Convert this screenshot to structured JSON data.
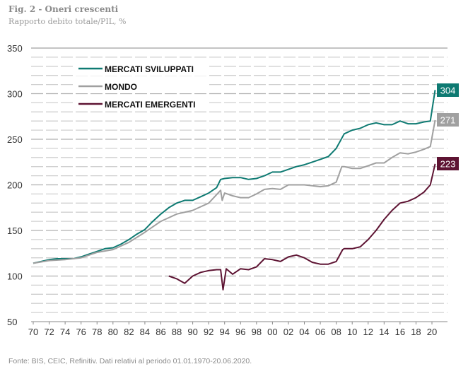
{
  "chart_data": {
    "type": "line",
    "title": "Fig. 2 - Oneri crescenti",
    "subtitle": "Rapporto debito totale/PIL, %",
    "source": "Fonte: BIS, CEIC, Refinitiv. Dati relativi al periodo 01.01.1970-20.06.2020.",
    "xlabel": "",
    "ylabel": "",
    "ylim": [
      50,
      350
    ],
    "xlim": [
      1970,
      2021.5
    ],
    "yticks": [
      50,
      100,
      150,
      200,
      250,
      300,
      350
    ],
    "xticks": [
      1970,
      1972,
      1974,
      1976,
      1978,
      1980,
      1982,
      1984,
      1986,
      1988,
      1990,
      1992,
      1994,
      1996,
      1998,
      2000,
      2002,
      2004,
      2006,
      2008,
      2010,
      2012,
      2014,
      2016,
      2018,
      2020
    ],
    "xtick_labels": [
      "70",
      "72",
      "74",
      "76",
      "78",
      "80",
      "82",
      "84",
      "86",
      "88",
      "90",
      "92",
      "94",
      "96",
      "98",
      "00",
      "02",
      "04",
      "06",
      "08",
      "10",
      "12",
      "14",
      "16",
      "18",
      "20"
    ],
    "grid": true,
    "legend_position": "top-left",
    "series": [
      {
        "name": "MERCATI SVILUPPATI",
        "color": "#0e7a72",
        "end_label": "304",
        "x": [
          1970,
          1971,
          1972,
          1973,
          1974,
          1975,
          1976,
          1977,
          1978,
          1979,
          1980,
          1981,
          1982,
          1983,
          1984,
          1985,
          1986,
          1987,
          1988,
          1989,
          1990,
          1991,
          1992,
          1993,
          1993.5,
          1994,
          1995,
          1996,
          1997,
          1998,
          1999,
          2000,
          2001,
          2002,
          2003,
          2004,
          2005,
          2006,
          2007,
          2008,
          2009,
          2010,
          2011,
          2012,
          2013,
          2014,
          2015,
          2016,
          2017,
          2018,
          2019,
          2019.8,
          2020.4
        ],
        "y": [
          114,
          116,
          118,
          119,
          119,
          119,
          121,
          124,
          127,
          130,
          131,
          135,
          140,
          146,
          151,
          160,
          168,
          175,
          180,
          183,
          183,
          187,
          191,
          197,
          206,
          207,
          208,
          208,
          206,
          207,
          210,
          214,
          214,
          217,
          220,
          222,
          225,
          228,
          231,
          240,
          256,
          260,
          262,
          266,
          268,
          266,
          266,
          270,
          267,
          267,
          269,
          270,
          304
        ]
      },
      {
        "name": "MONDO",
        "color": "#a0a0a0",
        "end_label": "271",
        "x": [
          1970,
          1972,
          1974,
          1976,
          1978,
          1980,
          1982,
          1984,
          1986,
          1988,
          1990,
          1992,
          1993.5,
          1993.7,
          1994,
          1995,
          1996,
          1997,
          1998,
          1999,
          2000,
          2001,
          2002,
          2003,
          2004,
          2005,
          2006,
          2007,
          2008,
          2008.7,
          2009,
          2010,
          2011,
          2012,
          2013,
          2014,
          2015,
          2016,
          2017,
          2018,
          2019,
          2019.8,
          2020.4
        ],
        "y": [
          114,
          117,
          118,
          120,
          126,
          129,
          137,
          148,
          160,
          168,
          172,
          180,
          194,
          183,
          191,
          188,
          186,
          186,
          190,
          195,
          196,
          195,
          200,
          200,
          200,
          199,
          198,
          199,
          203,
          220,
          220,
          218,
          218,
          221,
          224,
          224,
          230,
          235,
          234,
          236,
          239,
          242,
          271
        ]
      },
      {
        "name": "MERCATI EMERGENTI",
        "color": "#5e1433",
        "end_label": "223",
        "x": [
          1987,
          1988,
          1989,
          1990,
          1991,
          1992,
          1993,
          1993.5,
          1993.8,
          1994.2,
          1995,
          1996,
          1997,
          1998,
          1999,
          2000,
          2001,
          2002,
          2003,
          2004,
          2005,
          2006,
          2007,
          2008,
          2008.8,
          2009,
          2010,
          2011,
          2012,
          2013,
          2014,
          2015,
          2016,
          2017,
          2018,
          2019,
          2019.8,
          2020.4
        ],
        "y": [
          100,
          97,
          92,
          100,
          104,
          106,
          107,
          107,
          85,
          108,
          102,
          108,
          107,
          110,
          119,
          118,
          116,
          121,
          123,
          120,
          115,
          113,
          113,
          116,
          129,
          130,
          130,
          132,
          140,
          150,
          162,
          172,
          180,
          182,
          186,
          192,
          200,
          223
        ]
      }
    ]
  }
}
